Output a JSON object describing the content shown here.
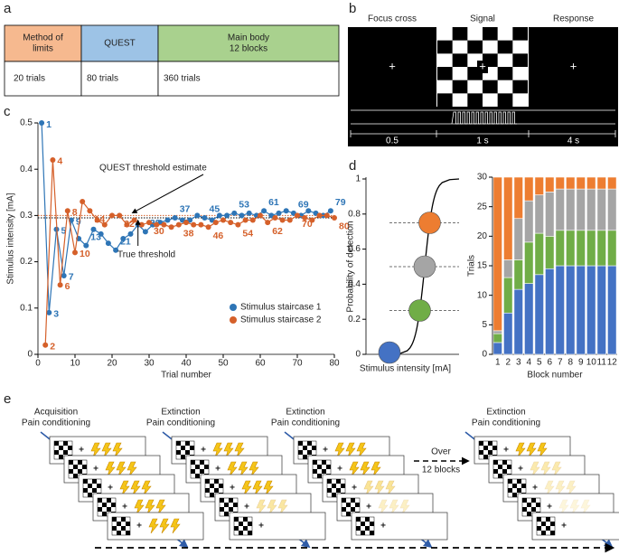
{
  "panel_labels": [
    "a",
    "b",
    "c",
    "d",
    "e"
  ],
  "table": {
    "headers": [
      [
        "Method of",
        "limits"
      ],
      [
        "QUEST"
      ],
      [
        "Main body",
        "12 blocks"
      ]
    ],
    "header_colors": [
      "#f6b98f",
      "#9dc3e6",
      "#a9d18e"
    ],
    "rows": [
      [
        "20 trials",
        "80 trials",
        "360 trials"
      ]
    ]
  },
  "timeline": {
    "phases": [
      "Focus cross",
      "Signal",
      "Response"
    ],
    "symbol": "+",
    "durations": [
      "0.5",
      "1 s",
      "4 s"
    ]
  },
  "chart_data": [
    {
      "type": "line",
      "xlabel": "Trial number",
      "ylabel": "Stimulus intensity [mA]",
      "xlim": [
        0,
        80
      ],
      "xticks": [
        0,
        10,
        20,
        30,
        40,
        50,
        60,
        70,
        80
      ],
      "ylim": [
        0,
        0.5
      ],
      "yticks": [
        0,
        0.1,
        0.2,
        0.3,
        0.4,
        0.5
      ],
      "legend": "lower right",
      "annotations": [
        {
          "text": "QUEST threshold estimate",
          "value": 0.3,
          "color": "#d5602a"
        },
        {
          "text": "True threshold",
          "value": 0.295,
          "color": "#000000"
        }
      ],
      "series": [
        {
          "name": "Stimulus staircase 1",
          "color": "#2e75b6",
          "x": [
            1,
            3,
            5,
            7,
            9,
            11,
            13,
            15,
            17,
            19,
            21,
            23,
            25,
            27,
            29,
            31,
            33,
            35,
            37,
            39,
            41,
            43,
            45,
            47,
            49,
            51,
            53,
            55,
            57,
            59,
            61,
            63,
            65,
            67,
            69,
            71,
            73,
            75,
            77,
            79
          ],
          "values": [
            0.5,
            0.09,
            0.27,
            0.17,
            0.29,
            0.25,
            0.235,
            0.27,
            0.26,
            0.24,
            0.225,
            0.25,
            0.26,
            0.28,
            0.265,
            0.28,
            0.285,
            0.29,
            0.295,
            0.29,
            0.29,
            0.3,
            0.295,
            0.29,
            0.3,
            0.3,
            0.305,
            0.3,
            0.305,
            0.3,
            0.31,
            0.3,
            0.305,
            0.31,
            0.305,
            0.3,
            0.31,
            0.305,
            0.3,
            0.31
          ],
          "labels": [
            1,
            3,
            5,
            7,
            9,
            null,
            13,
            null,
            null,
            null,
            21,
            null,
            null,
            null,
            29,
            null,
            null,
            null,
            37,
            null,
            null,
            null,
            45,
            null,
            null,
            null,
            53,
            null,
            null,
            null,
            61,
            null,
            null,
            null,
            69,
            null,
            null,
            null,
            null,
            79
          ]
        },
        {
          "name": "Stimulus staircase 2",
          "color": "#d5602a",
          "x": [
            2,
            4,
            6,
            8,
            10,
            12,
            14,
            16,
            18,
            20,
            22,
            24,
            26,
            28,
            30,
            32,
            34,
            36,
            38,
            40,
            42,
            44,
            46,
            48,
            50,
            52,
            54,
            56,
            58,
            60,
            62,
            64,
            66,
            68,
            70,
            72,
            74,
            76,
            78,
            80
          ],
          "values": [
            0.02,
            0.42,
            0.15,
            0.31,
            0.22,
            0.33,
            0.31,
            0.29,
            0.28,
            0.3,
            0.3,
            0.28,
            0.29,
            0.28,
            0.285,
            0.28,
            0.28,
            0.275,
            0.28,
            0.285,
            0.28,
            0.28,
            0.275,
            0.285,
            0.29,
            0.285,
            0.28,
            0.29,
            0.29,
            0.3,
            0.285,
            0.295,
            0.29,
            0.29,
            0.3,
            0.295,
            0.29,
            0.3,
            0.3,
            0.295
          ],
          "labels": [
            2,
            4,
            6,
            8,
            10,
            null,
            14,
            null,
            null,
            null,
            22,
            null,
            null,
            null,
            30,
            null,
            null,
            null,
            38,
            null,
            null,
            null,
            46,
            null,
            null,
            null,
            54,
            null,
            null,
            null,
            62,
            null,
            null,
            null,
            70,
            null,
            null,
            null,
            null,
            80
          ]
        }
      ]
    },
    {
      "type": "psychometric",
      "xlabel": "Stimulus intensity [mA]",
      "ylabel": "Probability of detection",
      "ylim": [
        0,
        1
      ],
      "yticks": [
        0,
        0.2,
        0.4,
        0.6,
        0.8,
        1
      ],
      "levels": [
        0,
        0.25,
        0.5,
        0.75
      ],
      "colors": [
        "#4472c4",
        "#70ad47",
        "#a5a5a5",
        "#ed7d31"
      ]
    },
    {
      "type": "stacked_bar",
      "xlabel": "Block number",
      "ylabel": "Trials",
      "ylim": [
        0,
        30
      ],
      "yticks": [
        0,
        5,
        10,
        15,
        20,
        25,
        30
      ],
      "categories": [
        "1",
        "2",
        "3",
        "4",
        "5",
        "6",
        "7",
        "8",
        "9",
        "10",
        "11",
        "12"
      ],
      "series": [
        {
          "color": "#4472c4",
          "values": [
            2,
            7,
            11,
            12,
            13.5,
            14.5,
            15,
            15,
            15,
            15,
            15,
            15
          ]
        },
        {
          "color": "#70ad47",
          "values": [
            1.5,
            6,
            5,
            7,
            7,
            5.5,
            6,
            6,
            6,
            6,
            6,
            6
          ]
        },
        {
          "color": "#a5a5a5",
          "values": [
            0.5,
            3,
            7,
            7,
            6.5,
            7.5,
            7,
            7,
            7,
            7,
            7,
            7
          ]
        },
        {
          "color": "#ed7d31",
          "values": [
            26,
            14,
            7,
            4,
            3,
            2.5,
            2,
            2,
            2,
            2,
            2,
            2
          ]
        }
      ]
    }
  ],
  "diagram": {
    "stages": [
      [
        "Acquisition",
        "Pain conditioning"
      ],
      [
        "Extinction",
        "Pain conditioning"
      ],
      [
        "Extinction",
        "Pain conditioning"
      ],
      [
        "Extinction",
        "Pain conditioning"
      ]
    ],
    "over": [
      "Over",
      "12 blocks"
    ],
    "symbol": "+"
  }
}
